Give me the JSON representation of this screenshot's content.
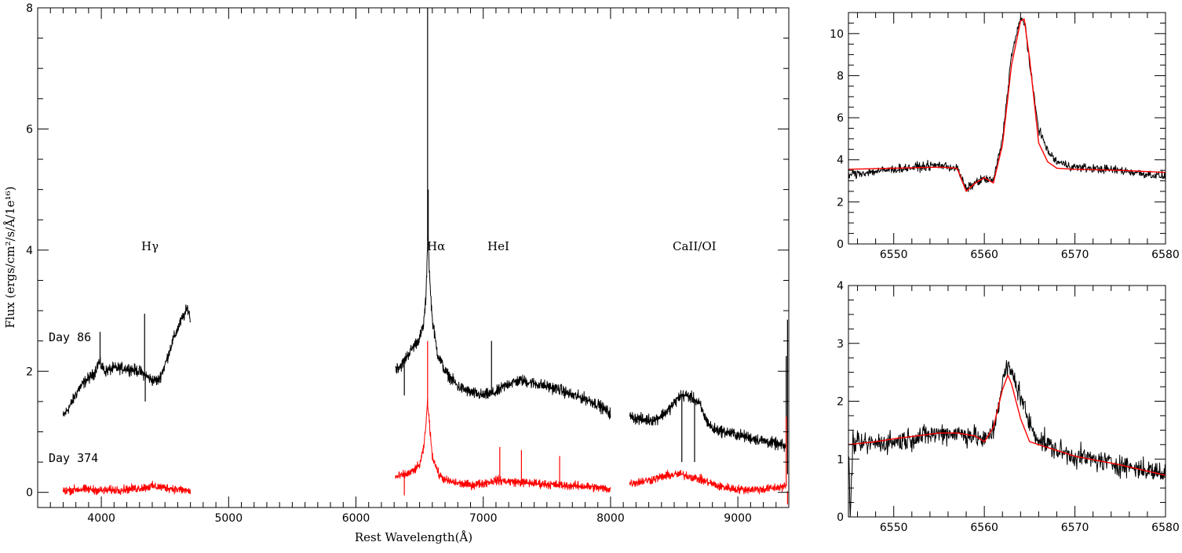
{
  "colors": {
    "day86": "#000000",
    "day374": "#ff0000",
    "model": "#ff0000",
    "axes": "#000000"
  },
  "chart_data": [
    {
      "type": "line",
      "title": "",
      "xlabel": "Rest Wavelength(Å)",
      "ylabel": "Flux (ergs/cm²/s/Å/1e¹⁶)",
      "xlim": [
        3500,
        9400
      ],
      "ylim": [
        -0.25,
        8
      ],
      "x_ticks": [
        4000,
        5000,
        6000,
        7000,
        8000,
        9000
      ],
      "y_ticks": [
        0,
        2,
        4,
        6,
        8
      ],
      "grid": false,
      "annotations": [
        {
          "text": "Hγ",
          "x": 4420,
          "y": 4.05
        },
        {
          "text": "Hα",
          "x": 6640,
          "y": 4.05
        },
        {
          "text": "HeI",
          "x": 7110,
          "y": 4.05
        },
        {
          "text": "CaII/OI",
          "x": 8720,
          "y": 4.05
        },
        {
          "text": "Day 86",
          "x": 3580,
          "y": 2.45
        },
        {
          "text": "Day 374",
          "x": 3580,
          "y": 0.45
        }
      ],
      "series": [
        {
          "name": "Day 86",
          "segments": [
            {
              "x": [
                3700,
                3760,
                3820,
                3880,
                3940,
                3980,
                4030,
                4100,
                4200,
                4300,
                4400,
                4450,
                4500,
                4560,
                4620,
                4680,
                4700
              ],
              "y": [
                1.25,
                1.45,
                1.7,
                1.85,
                1.95,
                2.15,
                2.0,
                2.05,
                2.05,
                2.0,
                1.85,
                1.85,
                2.1,
                2.5,
                2.8,
                3.05,
                2.85
              ]
            },
            {
              "x": [
                6310,
                6360,
                6400,
                6450,
                6500,
                6530,
                6550,
                6565,
                6580,
                6600,
                6640,
                6700,
                6800,
                6900,
                7000,
                7100,
                7200,
                7300,
                7400,
                7500,
                7600,
                7700,
                7800,
                7900,
                8000
              ],
              "y": [
                2.05,
                2.1,
                2.25,
                2.4,
                2.55,
                2.75,
                3.2,
                4.3,
                3.5,
                2.85,
                2.3,
                2.0,
                1.75,
                1.65,
                1.6,
                1.65,
                1.8,
                1.85,
                1.8,
                1.75,
                1.7,
                1.6,
                1.55,
                1.45,
                1.3
              ]
            },
            {
              "x": [
                8150,
                8250,
                8350,
                8450,
                8550,
                8600,
                8650,
                8700,
                8750,
                8800,
                8900,
                9000,
                9100,
                9200,
                9300,
                9380
              ],
              "y": [
                1.25,
                1.2,
                1.2,
                1.35,
                1.6,
                1.6,
                1.55,
                1.45,
                1.2,
                1.05,
                1.0,
                0.95,
                0.9,
                0.85,
                0.8,
                0.75
              ]
            }
          ],
          "spikes": [
            {
              "x": 4340,
              "y": 2.95
            },
            {
              "x": 4345,
              "y": 1.5
            },
            {
              "x": 3990,
              "y": 2.65
            },
            {
              "x": 6563,
              "y": 8.0
            },
            {
              "x": 6568,
              "y": 5.0
            },
            {
              "x": 7065,
              "y": 2.5
            },
            {
              "x": 6380,
              "y": 1.6
            },
            {
              "x": 8560,
              "y": 0.5
            },
            {
              "x": 8660,
              "y": 0.5
            },
            {
              "x": 9380,
              "y": 2.25
            },
            {
              "x": 9390,
              "y": 0.3
            }
          ],
          "noise": 0.08
        },
        {
          "name": "Day 374",
          "segments": [
            {
              "x": [
                3700,
                3800,
                3900,
                4000,
                4100,
                4200,
                4300,
                4400,
                4500,
                4600,
                4700
              ],
              "y": [
                0.02,
                0.05,
                0.05,
                0.03,
                0.04,
                0.05,
                0.07,
                0.1,
                0.08,
                0.05,
                0.02
              ]
            },
            {
              "x": [
                6310,
                6400,
                6450,
                6500,
                6530,
                6550,
                6560,
                6575,
                6600,
                6650,
                6700,
                6800,
                6900,
                7000,
                7100,
                7200,
                7400,
                7600,
                7800,
                8000
              ],
              "y": [
                0.25,
                0.3,
                0.35,
                0.45,
                0.7,
                1.1,
                1.5,
                1.2,
                0.6,
                0.3,
                0.2,
                0.15,
                0.12,
                0.15,
                0.2,
                0.18,
                0.15,
                0.12,
                0.1,
                0.05
              ]
            },
            {
              "x": [
                8150,
                8300,
                8450,
                8550,
                8650,
                8750,
                8850,
                9000,
                9200,
                9380
              ],
              "y": [
                0.15,
                0.2,
                0.28,
                0.3,
                0.25,
                0.18,
                0.1,
                0.05,
                0.05,
                0.1
              ]
            }
          ],
          "spikes": [
            {
              "x": 6563,
              "y": 2.5
            },
            {
              "x": 6380,
              "y": -0.05
            },
            {
              "x": 7130,
              "y": 0.75
            },
            {
              "x": 7300,
              "y": 0.7
            },
            {
              "x": 7600,
              "y": 0.6
            },
            {
              "x": 9380,
              "y": 1.25
            },
            {
              "x": 9390,
              "y": -0.2
            }
          ],
          "noise": 0.06
        }
      ]
    },
    {
      "type": "line",
      "title": "",
      "xlabel": "",
      "ylabel": "",
      "xlim": [
        6545,
        6580
      ],
      "ylim": [
        0,
        11
      ],
      "x_ticks": [
        6550,
        6560,
        6570,
        6580
      ],
      "y_ticks": [
        0,
        2,
        4,
        6,
        8,
        10
      ],
      "grid": false,
      "series": [
        {
          "kind": "observed",
          "noise": 0.18,
          "x": [
            6545,
            6550,
            6555,
            6557,
            6558,
            6559,
            6560,
            6561,
            6562,
            6563,
            6564,
            6564.5,
            6565,
            6566,
            6567,
            6568,
            6570,
            6575,
            6580
          ],
          "y": [
            3.3,
            3.55,
            3.75,
            3.6,
            2.6,
            2.9,
            3.1,
            3.0,
            5.0,
            9.0,
            10.7,
            10.5,
            8.5,
            5.5,
            4.4,
            3.9,
            3.65,
            3.5,
            3.2
          ]
        },
        {
          "kind": "model",
          "x": [
            6545,
            6550,
            6555,
            6557,
            6558,
            6559,
            6560,
            6561,
            6562,
            6563,
            6564,
            6564.4,
            6565,
            6566,
            6567,
            6568,
            6570,
            6575,
            6580
          ],
          "y": [
            3.55,
            3.6,
            3.65,
            3.6,
            2.5,
            2.9,
            3.15,
            2.9,
            4.7,
            8.5,
            10.6,
            10.7,
            8.8,
            4.8,
            3.9,
            3.6,
            3.55,
            3.5,
            3.4
          ]
        }
      ]
    },
    {
      "type": "line",
      "title": "",
      "xlabel": "",
      "ylabel": "",
      "xlim": [
        6545,
        6580
      ],
      "ylim": [
        0,
        4
      ],
      "x_ticks": [
        6550,
        6560,
        6570,
        6580
      ],
      "y_ticks": [
        0,
        1,
        2,
        3,
        4
      ],
      "grid": false,
      "series": [
        {
          "kind": "observed",
          "noise": 0.16,
          "x": [
            6545,
            6545.2,
            6545.5,
            6546,
            6550,
            6555,
            6557,
            6559,
            6560,
            6561,
            6562,
            6562.5,
            6563,
            6564,
            6565,
            6566,
            6568,
            6570,
            6575,
            6580
          ],
          "y": [
            1.2,
            0.0,
            1.3,
            1.25,
            1.3,
            1.45,
            1.45,
            1.4,
            1.3,
            1.5,
            2.3,
            2.6,
            2.5,
            2.1,
            1.6,
            1.35,
            1.15,
            1.05,
            0.9,
            0.75
          ]
        },
        {
          "kind": "model",
          "x": [
            6545,
            6548,
            6550,
            6555,
            6557,
            6559,
            6560,
            6561,
            6562,
            6562.6,
            6563,
            6564,
            6565,
            6566,
            6568,
            6570,
            6575,
            6580
          ],
          "y": [
            1.25,
            1.3,
            1.35,
            1.45,
            1.45,
            1.4,
            1.3,
            1.55,
            2.2,
            2.45,
            2.3,
            1.7,
            1.3,
            1.25,
            1.15,
            1.05,
            0.9,
            0.72
          ]
        }
      ]
    }
  ]
}
